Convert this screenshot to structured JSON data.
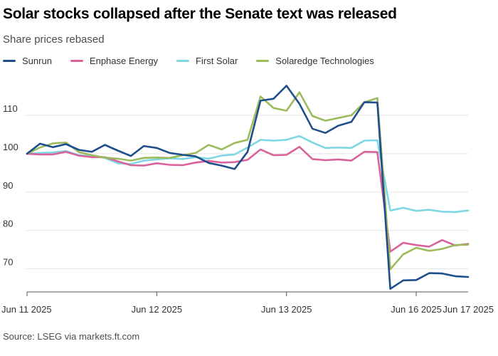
{
  "header": {
    "title": "Solar stocks collapsed after the Senate text was released",
    "subtitle": "Share prices rebased"
  },
  "footer": {
    "source": "Source: LSEG via markets.ft.com"
  },
  "colors": {
    "Sunrun": "#1f4e8c",
    "Enphase Energy": "#d9629a",
    "First Solar": "#7fd7e3",
    "Solaredge Technologies": "#9bbb5c",
    "grid": "#e3e3e3",
    "axis": "#555555"
  },
  "chart_data": {
    "type": "line",
    "title": "Solar stocks collapsed after the Senate text was released",
    "subtitle": "Share prices rebased",
    "ylim": [
      64,
      120
    ],
    "yticks": [
      70,
      80,
      90,
      100,
      110
    ],
    "xticks": [
      "Jun 11 2025",
      "Jun 12 2025",
      "Jun 13 2025",
      "Jun 16 2025",
      "Jun 17 2025",
      "Jun 17 2025"
    ],
    "xtick_index": [
      0,
      10,
      20,
      30,
      40,
      48
    ],
    "grid": true,
    "legend_position": "top",
    "series": [
      {
        "name": "Sunrun",
        "values": [
          100,
          102.6,
          101.7,
          102.5,
          101,
          100.5,
          102.3,
          100.8,
          99.4,
          102,
          101.5,
          100.2,
          99.7,
          99.3,
          97.6,
          96.9,
          96,
          100.5,
          113.8,
          114.3,
          117.7,
          113,
          106.5,
          105.4,
          107.3,
          108.3,
          113.4,
          113.3,
          64.8,
          67,
          67.1,
          68.9,
          68.8,
          68.1,
          67.9
        ]
      },
      {
        "name": "Enphase Energy",
        "values": [
          100,
          99.8,
          99.8,
          100.5,
          99.5,
          99.1,
          99.1,
          98,
          97,
          96.9,
          97.5,
          97.1,
          97,
          97.7,
          98.1,
          97.7,
          97.8,
          98.4,
          101.1,
          99.6,
          99.7,
          101.8,
          98.6,
          98.3,
          98.5,
          98.2,
          100.5,
          100.4,
          74.5,
          76.8,
          76.2,
          75.8,
          77.5,
          76.1,
          76.5
        ]
      },
      {
        "name": "First Solar",
        "values": [
          100,
          100.2,
          100.3,
          100.7,
          99.6,
          99.4,
          98.9,
          97.5,
          97.3,
          98.2,
          98.5,
          98.8,
          98.6,
          99.1,
          98.7,
          99.5,
          99.8,
          101.6,
          103.6,
          103.4,
          103.6,
          104.6,
          102.9,
          101.5,
          101.6,
          101.5,
          103.4,
          103.5,
          85.2,
          85.9,
          85.1,
          85.4,
          84.9,
          84.8,
          85.2
        ]
      },
      {
        "name": "Solaredge Technologies",
        "values": [
          100,
          101.6,
          102.7,
          102.9,
          100.4,
          99.6,
          99,
          98.7,
          98.2,
          98.9,
          99,
          98.9,
          99.6,
          100.2,
          102.3,
          101.1,
          102.8,
          103.6,
          114.9,
          111.9,
          111.2,
          116,
          109.8,
          108.6,
          109.3,
          110,
          113.4,
          114.5,
          69.9,
          73.8,
          75.5,
          74.7,
          75.2,
          76.2,
          76.3
        ]
      }
    ]
  }
}
